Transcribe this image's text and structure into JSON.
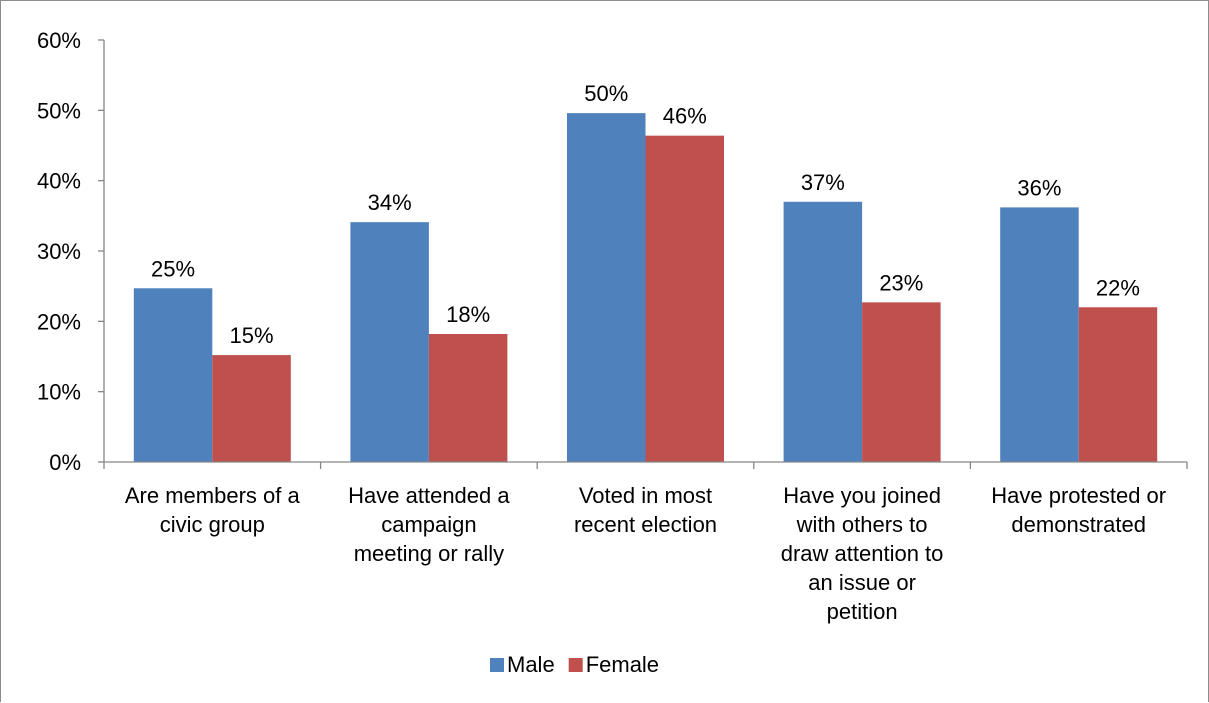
{
  "chart_data": {
    "type": "bar",
    "categories": [
      [
        "Are members of a",
        "civic group"
      ],
      [
        "Have attended a",
        "campaign",
        "meeting or rally"
      ],
      [
        "Voted in most",
        "recent election"
      ],
      [
        "Have you joined",
        "with others to",
        "draw attention to",
        "an issue or",
        "petition"
      ],
      [
        "Have protested or",
        "demonstrated"
      ]
    ],
    "series": [
      {
        "name": "Male",
        "color": "#4F81BD",
        "values": [
          25,
          34,
          50,
          37,
          36
        ],
        "display": [
          24.7,
          34.1,
          49.6,
          37.0,
          36.2
        ]
      },
      {
        "name": "Female",
        "color": "#C0504D",
        "values": [
          15,
          18,
          46,
          23,
          22
        ],
        "display": [
          15.2,
          18.2,
          46.4,
          22.7,
          22.0
        ]
      }
    ],
    "data_labels": [
      [
        "25%",
        "34%",
        "50%",
        "37%",
        "36%"
      ],
      [
        "15%",
        "18%",
        "46%",
        "23%",
        "22%"
      ]
    ],
    "y_ticks": [
      "0%",
      "10%",
      "20%",
      "30%",
      "40%",
      "50%",
      "60%"
    ],
    "ylim": [
      0,
      60
    ],
    "legend_position": "bottom",
    "grid": false
  }
}
